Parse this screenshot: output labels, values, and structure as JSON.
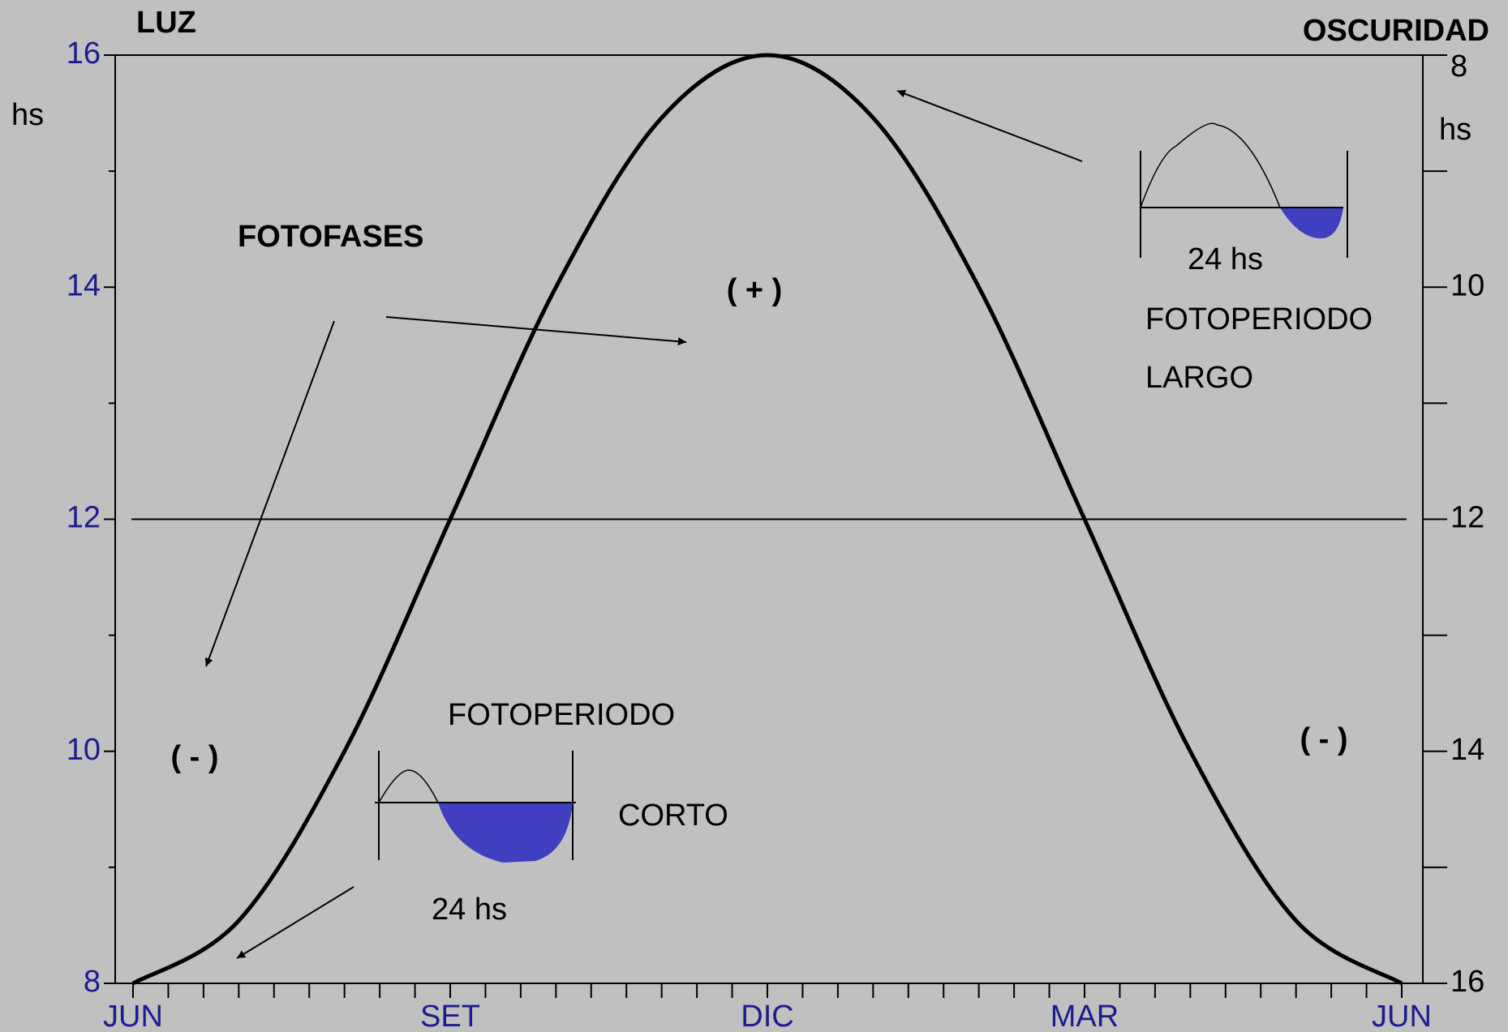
{
  "chart_data": {
    "type": "line",
    "categories": [
      "JUN",
      null,
      null,
      "SET",
      null,
      null,
      "DIC",
      null,
      null,
      "MAR",
      null,
      null,
      "JUN"
    ],
    "series": [
      {
        "name": null,
        "color": "#000000",
        "values": [
          8,
          8.54,
          10,
          12,
          14,
          15.46,
          16,
          15.46,
          14,
          12,
          10,
          8.54,
          8
        ]
      }
    ],
    "ylim": [
      8,
      16
    ],
    "yticks": [
      8,
      10,
      12,
      14,
      16
    ],
    "y2lim": [
      16,
      8
    ],
    "y2ticks": [
      8,
      10,
      12,
      14,
      16
    ],
    "hline": 12,
    "annotations": [
      "LUZ",
      "hs",
      "OSCURIDAD",
      "hs",
      "FOTOFASES",
      "( + )",
      "( - )",
      "( - )",
      "FOTOPERIODO",
      "LARGO",
      "24 hs",
      "FOTOPERIODO",
      "CORTO",
      "24 hs"
    ]
  }
}
